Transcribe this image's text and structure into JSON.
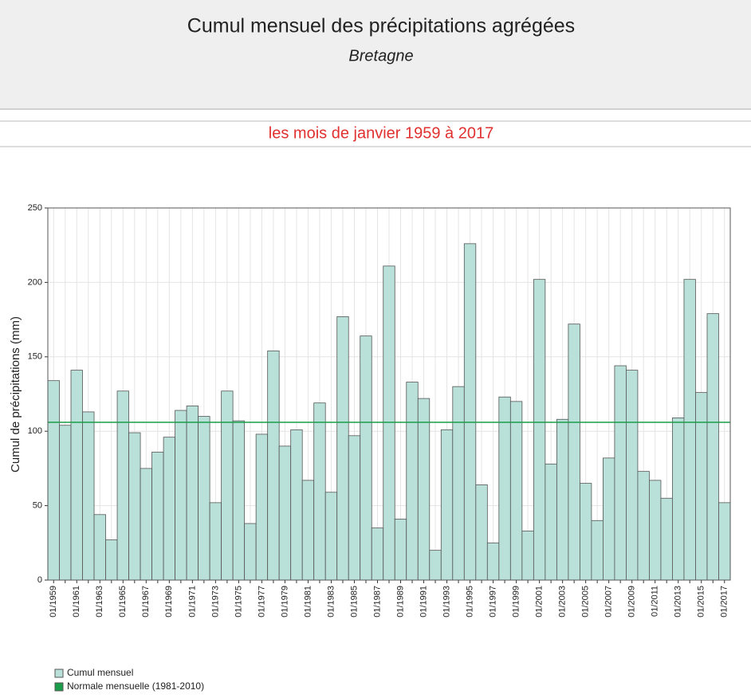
{
  "chart_data": {
    "type": "bar",
    "title": "Cumul mensuel des précipitations agrégées",
    "subtitle": "Bretagne",
    "period": "les mois de janvier 1959 à 2017",
    "y_label": "Cumul de précipitations (mm)",
    "categories": [
      "01/1959",
      null,
      "01/1961",
      null,
      "01/1963",
      null,
      "01/1965",
      null,
      "01/1967",
      null,
      "01/1969",
      null,
      "01/1971",
      null,
      "01/1973",
      null,
      "01/1975",
      null,
      "01/1977",
      null,
      "01/1979",
      null,
      "01/1981",
      null,
      "01/1983",
      null,
      "01/1985",
      null,
      "01/1987",
      null,
      "01/1989",
      null,
      "01/1991",
      null,
      "01/1993",
      null,
      "01/1995",
      null,
      "01/1997",
      null,
      "01/1999",
      null,
      "01/2001",
      null,
      "01/2003",
      null,
      "01/2005",
      null,
      "01/2007",
      null,
      "01/2009",
      null,
      "01/2011",
      null,
      "01/2013",
      null,
      "01/2015",
      null,
      "01/2017"
    ],
    "series": [
      {
        "name": "Cumul mensuel",
        "color": "#b9e1d9",
        "values": [
          134,
          104,
          141,
          113,
          44,
          27,
          127,
          99,
          75,
          86,
          96,
          114,
          117,
          110,
          52,
          127,
          107,
          38,
          98,
          154,
          90,
          101,
          67,
          119,
          59,
          177,
          97,
          164,
          35,
          211,
          41,
          133,
          122,
          20,
          101,
          130,
          226,
          64,
          25,
          123,
          120,
          33,
          202,
          78,
          108,
          172,
          65,
          40,
          82,
          144,
          141,
          73,
          67,
          55,
          109,
          202,
          126,
          179,
          52
        ]
      }
    ],
    "reference_line": {
      "name": "Normale mensuelle (1981-2010)",
      "color": "#1a9e4a",
      "value": 106
    },
    "ylim": [
      0,
      250
    ],
    "yticks": [
      0,
      50,
      100,
      150,
      200,
      250
    ],
    "grid": true
  }
}
